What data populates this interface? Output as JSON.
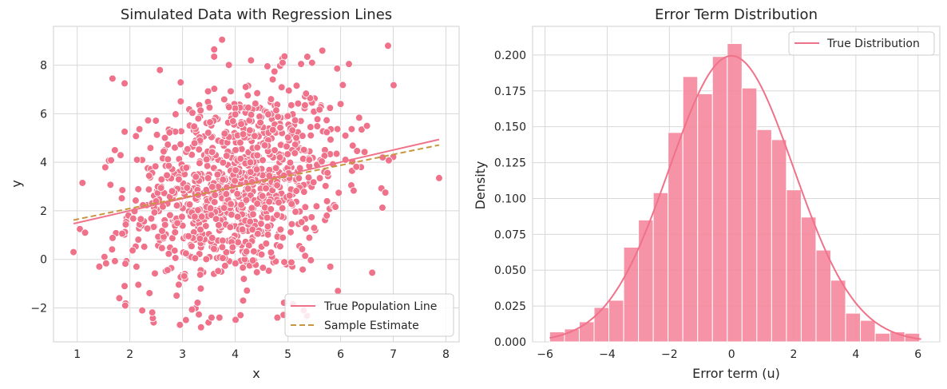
{
  "colors": {
    "pink": "#f0728a",
    "pink_fill": "#f5879c",
    "gold": "#c7963d",
    "grid": "#d8d8d8",
    "axes_edge": "#cfcfcf",
    "text": "#262626"
  },
  "chart_data": [
    {
      "type": "scatter",
      "title": "Simulated Data with Regression Lines",
      "xlabel": "x",
      "ylabel": "y",
      "xlim": [
        0.55,
        8.25
      ],
      "ylim": [
        -3.4,
        9.6
      ],
      "xticks": [
        1,
        2,
        3,
        4,
        5,
        6,
        7,
        8
      ],
      "yticks": [
        -2,
        0,
        2,
        4,
        6,
        8
      ],
      "xtick_labels": [
        "1",
        "2",
        "3",
        "4",
        "5",
        "6",
        "7",
        "8"
      ],
      "ytick_labels": [
        "−2",
        "0",
        "2",
        "4",
        "6",
        "8"
      ],
      "grid": true,
      "legend_position": "lower right",
      "series": [
        {
          "name": "True Population Line",
          "kind": "line",
          "style": "solid",
          "x": [
            0.93,
            7.87
          ],
          "y": [
            1.47,
            4.94
          ]
        },
        {
          "name": "Sample Estimate",
          "kind": "line",
          "style": "dashed",
          "x": [
            0.93,
            7.87
          ],
          "y": [
            1.62,
            4.71
          ]
        }
      ],
      "scatter_generation": {
        "n": 1000,
        "x_mean": 4.0,
        "x_sd": 1.0,
        "intercept": 1.0,
        "slope": 0.5,
        "noise_sd": 2.0
      },
      "notable_points": [
        {
          "x": 0.93,
          "y": 0.3
        },
        {
          "x": 7.87,
          "y": 3.35
        },
        {
          "x": 6.9,
          "y": 8.8
        },
        {
          "x": 3.75,
          "y": 9.05
        },
        {
          "x": 3.35,
          "y": -2.8
        },
        {
          "x": 3.55,
          "y": -2.4
        },
        {
          "x": 3.7,
          "y": -2.4
        },
        {
          "x": 2.95,
          "y": -2.7
        },
        {
          "x": 1.67,
          "y": 7.45
        },
        {
          "x": 1.9,
          "y": 7.25
        },
        {
          "x": 2.57,
          "y": 7.8
        },
        {
          "x": 1.1,
          "y": 3.15
        },
        {
          "x": 1.05,
          "y": 1.25
        },
        {
          "x": 1.15,
          "y": 1.1
        },
        {
          "x": 1.42,
          "y": -0.3
        },
        {
          "x": 1.8,
          "y": -1.6
        },
        {
          "x": 1.9,
          "y": -1.1
        },
        {
          "x": 6.6,
          "y": -0.55
        },
        {
          "x": 6.85,
          "y": 2.75
        },
        {
          "x": 6.8,
          "y": 4.2
        },
        {
          "x": 6.4,
          "y": 5.35
        },
        {
          "x": 6.5,
          "y": 5.5
        },
        {
          "x": 6.0,
          "y": 6.4
        },
        {
          "x": 5.95,
          "y": -1.3
        },
        {
          "x": 4.9,
          "y": 8.1
        },
        {
          "x": 5.25,
          "y": 8.05
        },
        {
          "x": 4.3,
          "y": 8.2
        },
        {
          "x": 3.6,
          "y": 8.65
        },
        {
          "x": 3.6,
          "y": 8.35
        },
        {
          "x": 4.1,
          "y": -2.3
        },
        {
          "x": 4.15,
          "y": -1.7
        },
        {
          "x": 5.1,
          "y": -1.85
        },
        {
          "x": 5.3,
          "y": -2.1
        },
        {
          "x": 4.8,
          "y": -2.4
        }
      ]
    },
    {
      "type": "bar",
      "subtype": "histogram",
      "title": "Error Term Distribution",
      "xlabel": "Error term (u)",
      "ylabel": "Density",
      "xlim": [
        -6.4,
        6.7
      ],
      "ylim": [
        0,
        0.22
      ],
      "xticks": [
        -6,
        -4,
        -2,
        0,
        2,
        4,
        6
      ],
      "xtick_labels": [
        "−6",
        "−4",
        "−2",
        "0",
        "2",
        "4",
        "6"
      ],
      "yticks": [
        0,
        0.025,
        0.05,
        0.075,
        0.1,
        0.125,
        0.15,
        0.175,
        0.2
      ],
      "ytick_labels": [
        "0.000",
        "0.025",
        "0.050",
        "0.075",
        "0.100",
        "0.125",
        "0.150",
        "0.175",
        "0.200"
      ],
      "grid": true,
      "legend_position": "upper right",
      "bins": {
        "start": -5.85,
        "width": 0.476,
        "values": [
          0.007,
          0.009,
          0.014,
          0.024,
          0.029,
          0.066,
          0.085,
          0.104,
          0.146,
          0.185,
          0.173,
          0.199,
          0.208,
          0.177,
          0.148,
          0.141,
          0.106,
          0.087,
          0.064,
          0.043,
          0.02,
          0.015,
          0.006,
          0.007,
          0.006
        ]
      },
      "series": [
        {
          "name": "True Distribution",
          "kind": "normal_pdf",
          "mean": 0,
          "sd": 2,
          "x_range": [
            -5.85,
            6.1
          ]
        }
      ]
    }
  ]
}
